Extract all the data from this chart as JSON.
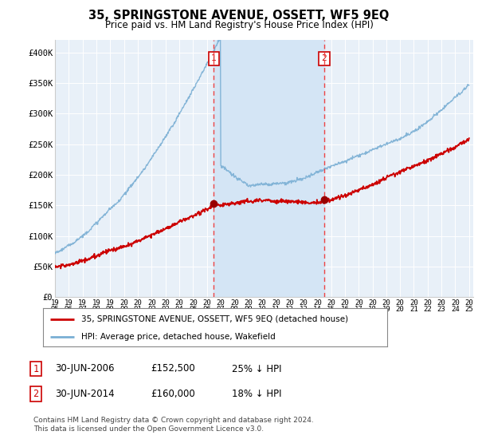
{
  "title": "35, SPRINGSTONE AVENUE, OSSETT, WF5 9EQ",
  "subtitle": "Price paid vs. HM Land Registry's House Price Index (HPI)",
  "fig_bg_color": "#ffffff",
  "plot_bg_color": "#e8f0f8",
  "highlight_color": "#d4e5f5",
  "ylim": [
    0,
    420000
  ],
  "yticks": [
    0,
    50000,
    100000,
    150000,
    200000,
    250000,
    300000,
    350000,
    400000
  ],
  "ytick_labels": [
    "£0",
    "£50K",
    "£100K",
    "£150K",
    "£200K",
    "£250K",
    "£300K",
    "£350K",
    "£400K"
  ],
  "sale1_year": 2006.5,
  "sale1_price": 152500,
  "sale2_year": 2014.5,
  "sale2_price": 160000,
  "red_line_color": "#cc0000",
  "blue_line_color": "#7aafd4",
  "marker_color": "#990000",
  "vline_color": "#ee4444",
  "legend_label1": "35, SPRINGSTONE AVENUE, OSSETT, WF5 9EQ (detached house)",
  "legend_label2": "HPI: Average price, detached house, Wakefield",
  "table_row1": [
    "1",
    "30-JUN-2006",
    "£152,500",
    "25% ↓ HPI"
  ],
  "table_row2": [
    "2",
    "30-JUN-2014",
    "£160,000",
    "18% ↓ HPI"
  ],
  "footer": "Contains HM Land Registry data © Crown copyright and database right 2024.\nThis data is licensed under the Open Government Licence v3.0."
}
